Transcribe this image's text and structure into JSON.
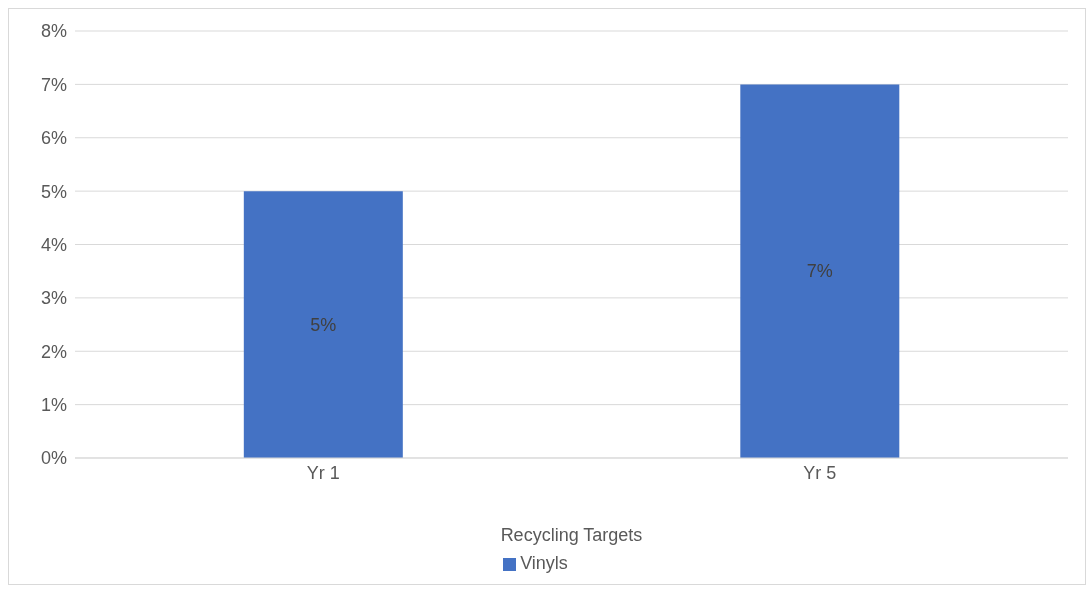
{
  "chart_data": {
    "type": "bar",
    "xlabel": "Recycling Targets",
    "categories": [
      "Yr 1",
      "Yr 5"
    ],
    "series": [
      {
        "name": "Vinyls",
        "color": "#4472c4",
        "values": [
          5,
          7
        ],
        "value_labels": [
          "5%",
          "7%"
        ]
      }
    ],
    "ylim": [
      0,
      8
    ],
    "yticks": [
      {
        "value": 0,
        "label": "0%"
      },
      {
        "value": 1,
        "label": "1%"
      },
      {
        "value": 2,
        "label": "2%"
      },
      {
        "value": 3,
        "label": "3%"
      },
      {
        "value": 4,
        "label": "4%"
      },
      {
        "value": 5,
        "label": "5%"
      },
      {
        "value": 6,
        "label": "6%"
      },
      {
        "value": 7,
        "label": "7%"
      },
      {
        "value": 8,
        "label": "8%"
      }
    ],
    "grid": "y",
    "legend": "bottom"
  }
}
